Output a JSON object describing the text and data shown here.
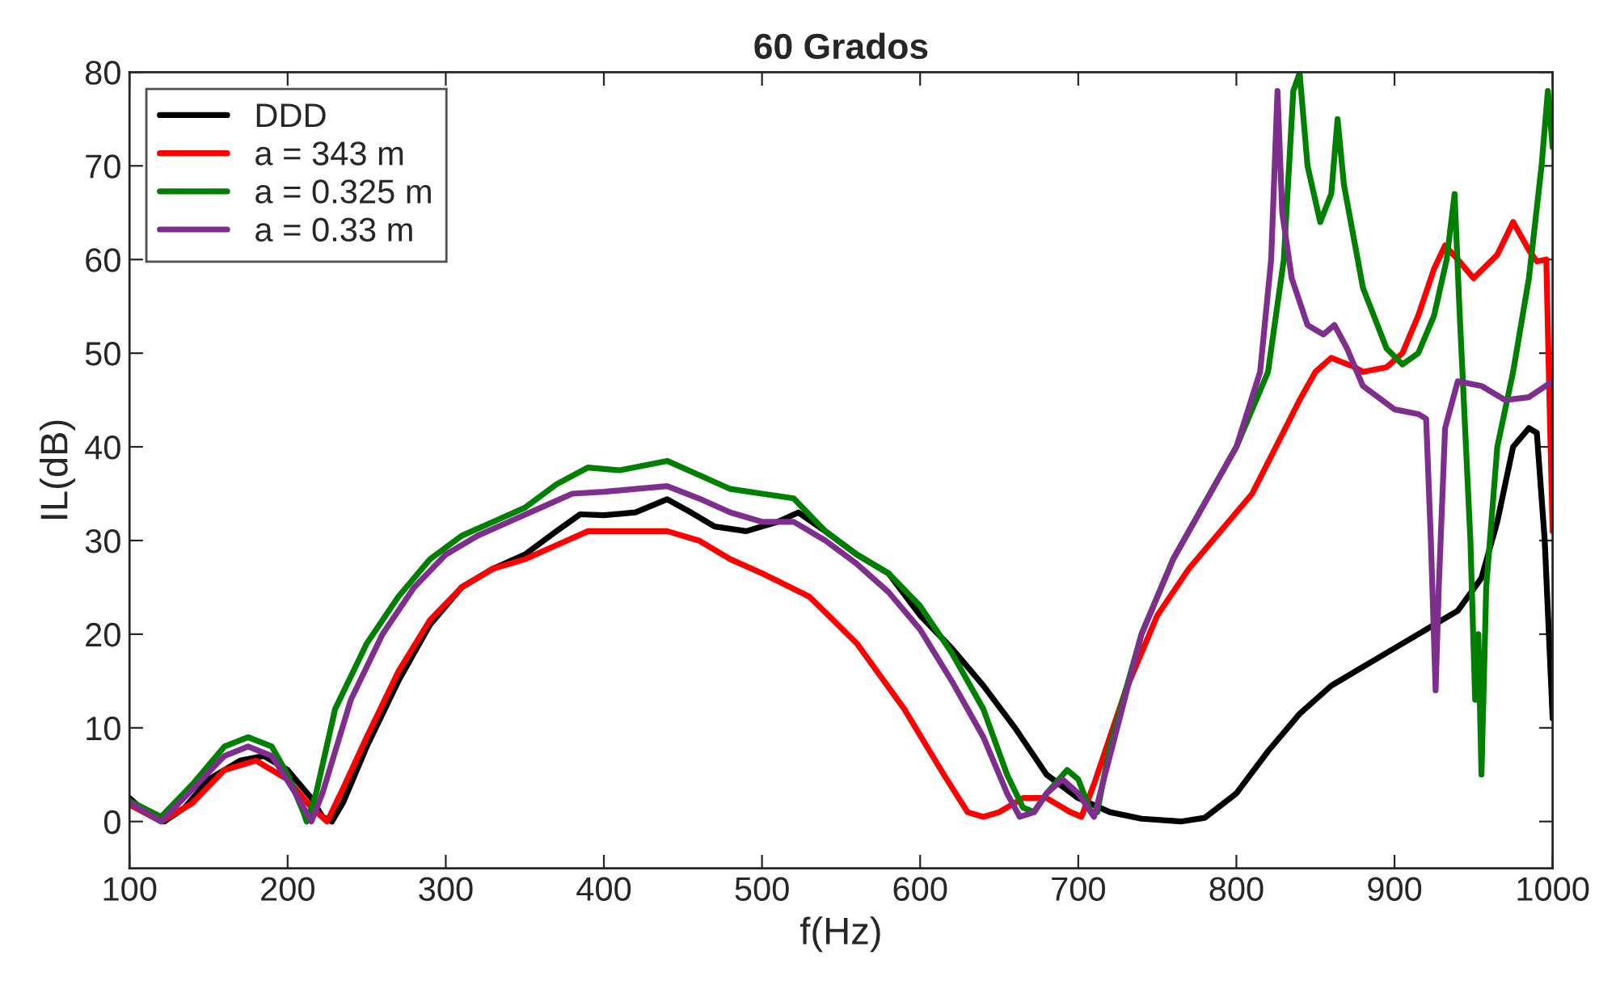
{
  "chart_data": {
    "type": "line",
    "title": "60 Grados",
    "xlabel": "f(Hz)",
    "ylabel": "IL(dB)",
    "xlim": [
      100,
      1000
    ],
    "ylim": [
      -5,
      80
    ],
    "xticks": [
      100,
      200,
      300,
      400,
      500,
      600,
      700,
      800,
      900,
      1000
    ],
    "yticks": [
      0,
      10,
      20,
      30,
      40,
      50,
      60,
      70,
      80
    ],
    "grid": false,
    "legend": "top left",
    "marker": "none",
    "line_style": "solid",
    "series": [
      {
        "name": "DDD",
        "color": "#000000",
        "x": [
          100,
          110,
          122,
          135,
          150,
          170,
          185,
          200,
          215,
          222,
          228,
          235,
          250,
          270,
          290,
          310,
          330,
          350,
          370,
          385,
          400,
          420,
          440,
          455,
          470,
          490,
          510,
          523,
          540,
          560,
          580,
          600,
          620,
          640,
          660,
          680,
          700,
          720,
          740,
          765,
          780,
          800,
          820,
          840,
          860,
          880,
          900,
          920,
          940,
          955,
          965,
          975,
          985,
          990,
          995,
          1000
        ],
        "values": [
          2.5,
          1,
          0,
          1.5,
          4.5,
          6.5,
          7,
          5.5,
          2.5,
          0.5,
          0,
          2,
          8,
          15,
          21,
          25,
          27,
          28.5,
          31,
          32.8,
          32.7,
          33,
          34.4,
          33,
          31.5,
          31,
          32,
          33,
          31,
          28.5,
          26.5,
          22,
          18.5,
          14.5,
          10,
          5,
          2.5,
          1,
          0.3,
          0,
          0.4,
          3,
          7.5,
          11.5,
          14.5,
          16.5,
          18.5,
          20.5,
          22.5,
          26,
          32,
          40,
          42,
          41.5,
          30,
          11
        ]
      },
      {
        "name": "a = 343 m",
        "color": "#ff0000",
        "x": [
          100,
          120,
          140,
          160,
          180,
          200,
          215,
          225,
          235,
          250,
          270,
          290,
          310,
          330,
          350,
          370,
          390,
          410,
          440,
          460,
          480,
          500,
          530,
          560,
          590,
          615,
          630,
          640,
          650,
          665,
          680,
          695,
          702,
          710,
          730,
          750,
          770,
          790,
          810,
          825,
          840,
          850,
          860,
          875,
          880,
          895,
          905,
          915,
          925,
          932,
          940,
          950,
          965,
          975,
          985,
          990,
          996,
          998,
          1000
        ],
        "values": [
          1.8,
          0,
          2,
          5.5,
          6.5,
          4.5,
          1.5,
          0,
          3.5,
          9,
          16,
          21.5,
          25,
          27,
          28,
          29.5,
          31,
          31,
          31,
          30,
          28,
          26.5,
          24,
          19,
          12,
          5,
          1,
          0.5,
          1,
          2.5,
          2.5,
          1,
          0.5,
          4,
          14,
          22,
          27,
          31,
          35,
          40,
          45,
          48,
          49.5,
          48.5,
          48,
          48.5,
          50,
          54,
          59,
          61.5,
          60,
          58,
          60.5,
          64,
          61,
          59.8,
          60,
          45,
          31
        ]
      },
      {
        "name": "a = 0.325 m",
        "color": "#008000",
        "x": [
          100,
          120,
          140,
          160,
          175,
          190,
          200,
          210,
          212,
          218,
          230,
          250,
          270,
          290,
          310,
          330,
          350,
          370,
          390,
          410,
          440,
          460,
          480,
          500,
          520,
          540,
          560,
          580,
          600,
          620,
          640,
          655,
          665,
          672,
          680,
          693,
          700,
          708,
          712,
          720,
          740,
          760,
          780,
          800,
          820,
          830,
          836,
          840,
          845,
          853,
          860,
          864,
          868,
          880,
          895,
          905,
          915,
          925,
          933,
          938,
          941,
          948,
          951,
          953,
          955,
          958,
          965,
          975,
          985,
          993,
          997,
          1000
        ],
        "values": [
          2.2,
          0.5,
          4,
          8,
          9,
          8,
          5,
          1,
          0,
          3,
          12,
          19,
          24,
          28,
          30.5,
          32,
          33.5,
          36,
          37.8,
          37.5,
          38.5,
          37,
          35.5,
          35,
          34.5,
          31,
          28.5,
          26.5,
          23,
          18,
          12,
          5,
          1.5,
          1,
          3,
          5.5,
          4.5,
          1,
          1,
          8,
          20,
          28,
          34,
          40,
          48,
          60,
          78,
          79.9,
          70,
          64,
          67,
          75,
          68,
          57,
          50.5,
          48.8,
          50,
          54,
          60,
          67,
          55,
          30,
          13,
          20,
          5,
          25,
          40,
          48,
          58,
          70,
          78,
          72
        ]
      },
      {
        "name": "a = 0.33 m",
        "color": "#7e2f8e",
        "x": [
          100,
          120,
          140,
          160,
          175,
          190,
          205,
          215,
          222,
          240,
          260,
          280,
          300,
          320,
          340,
          360,
          380,
          400,
          420,
          440,
          460,
          480,
          500,
          520,
          540,
          560,
          580,
          600,
          620,
          640,
          655,
          663,
          672,
          680,
          690,
          700,
          710,
          720,
          740,
          760,
          780,
          800,
          815,
          822,
          826,
          829,
          835,
          845,
          855,
          862,
          870,
          880,
          900,
          915,
          920,
          923,
          926,
          928,
          932,
          940,
          955,
          970,
          985,
          1000
        ],
        "values": [
          2,
          0,
          3.5,
          7,
          8,
          7,
          3,
          0,
          3,
          13,
          20,
          25,
          28.5,
          30.5,
          32,
          33.5,
          35,
          35.2,
          35.5,
          35.8,
          34.5,
          33,
          32,
          32,
          30,
          27.5,
          24.5,
          20.5,
          15,
          9,
          3,
          0.5,
          1,
          3,
          4.5,
          3,
          0.5,
          7,
          20,
          28,
          34,
          40,
          48,
          60,
          78,
          65,
          58,
          53,
          52,
          53,
          50.5,
          46.5,
          44,
          43.5,
          43,
          30,
          14,
          25,
          42,
          47,
          46.5,
          45,
          45.3,
          47
        ]
      }
    ]
  }
}
